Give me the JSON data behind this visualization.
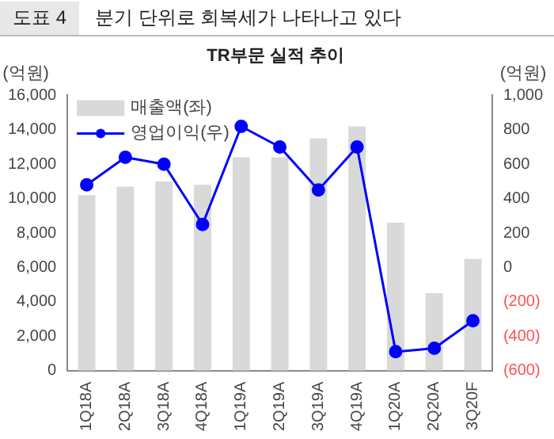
{
  "chart_data": {
    "type": "bar",
    "title": "분기 단위로 회복세가 나타나고 있다",
    "subtitle": "TR부문 실적 추이",
    "ylabel": "(억원)",
    "y2label": "(억원)",
    "annotations": [
      "도표 4"
    ],
    "categories": [
      "1Q18A",
      "2Q18A",
      "3Q18A",
      "4Q18A",
      "1Q19A",
      "2Q19A",
      "3Q19A",
      "4Q19A",
      "1Q20A",
      "2Q20A",
      "3Q20F"
    ],
    "series": [
      {
        "name": "매출액(좌)",
        "color": "#d9d9d9",
        "values": [
          10200,
          10700,
          11000,
          10800,
          12400,
          12400,
          13500,
          14200,
          8600,
          4500,
          6500
        ]
      },
      {
        "name": "영업이익(우)",
        "type": "line",
        "axis": "y2",
        "color": "#0000ff",
        "marker": "circle",
        "values": [
          480,
          640,
          600,
          250,
          820,
          700,
          450,
          700,
          -490,
          -470,
          -310
        ]
      }
    ],
    "ylim": [
      0,
      16000
    ],
    "yticks": [
      0,
      {
        "value": 2000,
        "label": "2,000"
      },
      {
        "value": 4000,
        "label": "4,000"
      },
      {
        "value": 6000,
        "label": "6,000"
      },
      {
        "value": 8000,
        "label": "8,000"
      },
      {
        "value": 10000,
        "label": "10,000"
      },
      {
        "value": 12000,
        "label": "12,000"
      },
      {
        "value": 14000,
        "label": "14,000"
      },
      {
        "value": 16000,
        "label": "16,000"
      }
    ],
    "y2lim": [
      -600,
      1000
    ],
    "y2ticks": [
      {
        "value": -600,
        "label": "(600)"
      },
      {
        "value": -400,
        "label": "(400)"
      },
      {
        "value": -200,
        "label": "(200)"
      },
      0,
      200,
      400,
      600,
      800,
      {
        "value": 1000,
        "label": "1,000"
      }
    ],
    "grid": false,
    "legend": "top left"
  }
}
